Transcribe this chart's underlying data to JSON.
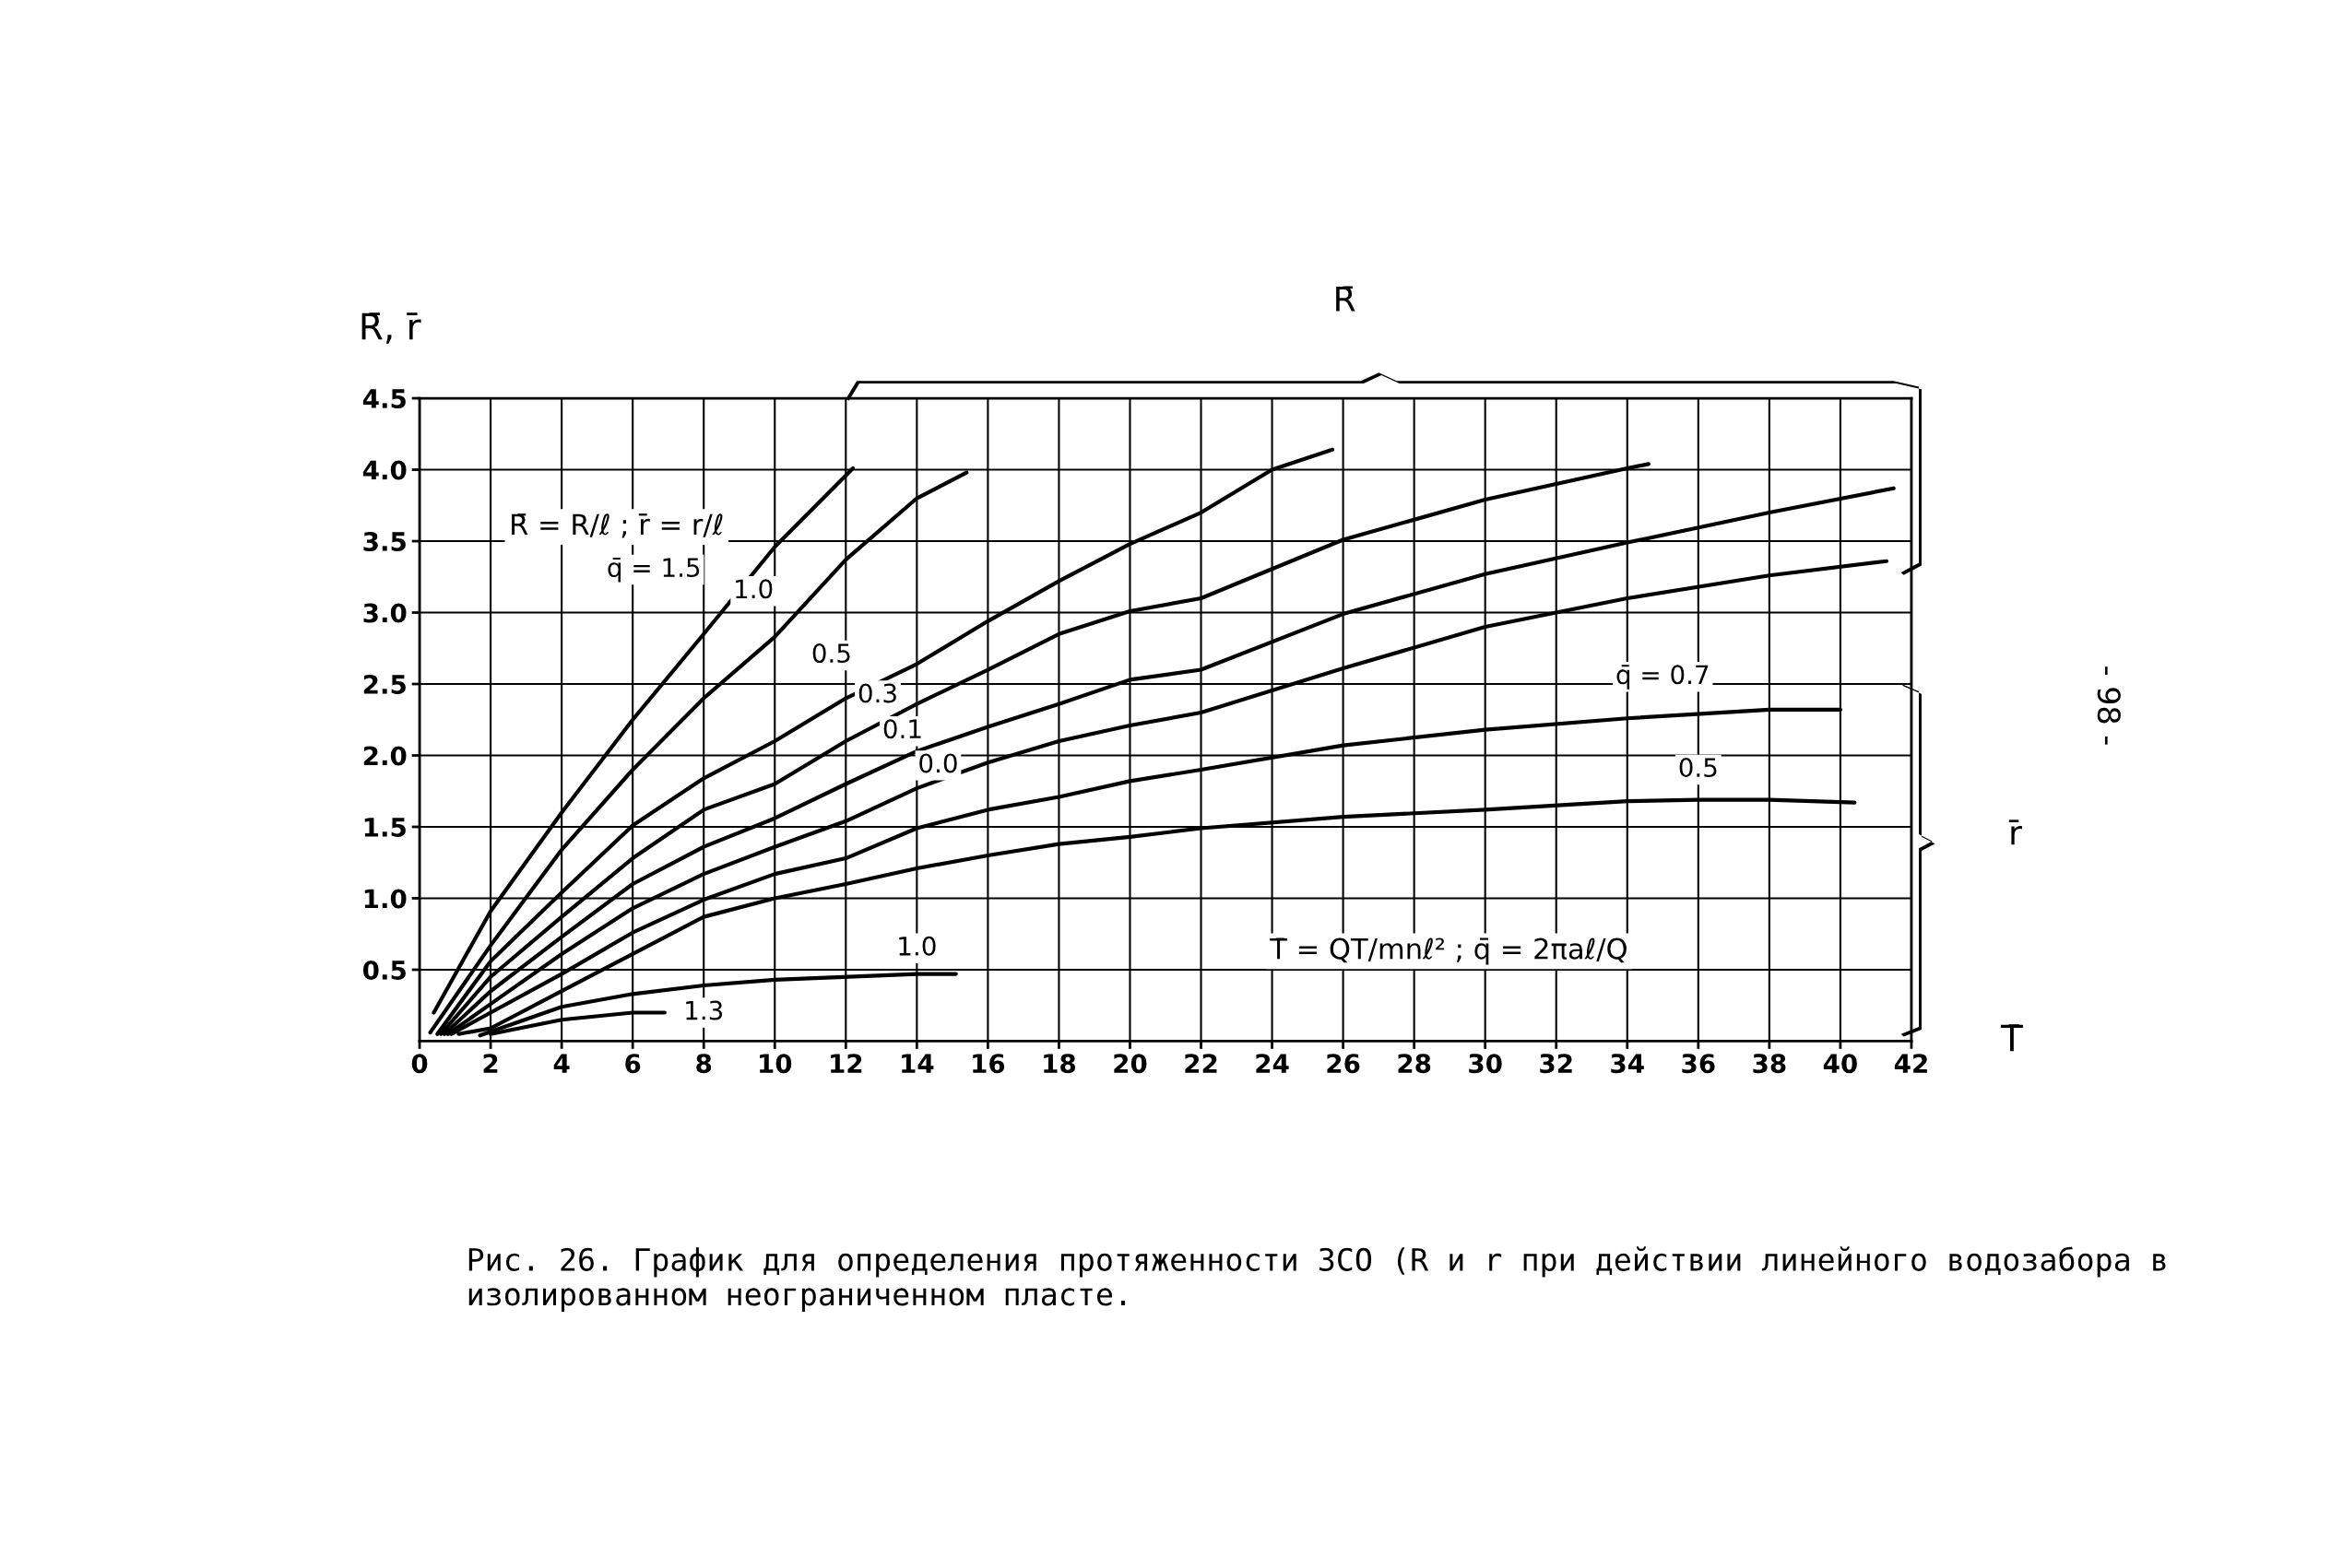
{
  "chart_data": {
    "type": "line",
    "xlabel": "T̄",
    "ylabel": "R̄, r̄",
    "xlim": [
      0,
      42
    ],
    "ylim": [
      0,
      4.5
    ],
    "xticks": [
      0,
      2,
      4,
      6,
      8,
      10,
      12,
      14,
      16,
      18,
      20,
      22,
      24,
      26,
      28,
      30,
      32,
      34,
      36,
      38,
      40,
      42
    ],
    "yticks": [
      {
        "value": 0.5,
        "label": "0.5"
      },
      {
        "value": 1.0,
        "label": "1.0"
      },
      {
        "value": 1.5,
        "label": "1.5"
      },
      {
        "value": 2.0,
        "label": "2.0"
      },
      {
        "value": 2.5,
        "label": "2.5"
      },
      {
        "value": 3.0,
        "label": "3.0"
      },
      {
        "value": 3.5,
        "label": "3.5"
      },
      {
        "value": 4.0,
        "label": "4.0"
      },
      {
        "value": 4.5,
        "label": "4.5"
      }
    ],
    "grid": true,
    "marker": "none",
    "line_style": "solid",
    "series": [
      {
        "color": "#000000",
        "x": [
          0.4,
          2,
          4,
          6,
          8,
          10,
          12.2
        ],
        "values": [
          0.2,
          0.91,
          1.6,
          2.25,
          2.85,
          3.46,
          4.01
        ]
      },
      {
        "color": "#000000",
        "x": [
          0.3,
          2,
          4,
          6,
          8,
          10,
          12,
          14,
          15.4
        ],
        "values": [
          0.06,
          0.67,
          1.34,
          1.9,
          2.4,
          2.83,
          3.37,
          3.8,
          3.98
        ]
      },
      {
        "color": "#000000",
        "x": [
          0.5,
          2,
          4,
          6,
          8,
          10,
          12,
          14,
          16,
          18,
          20,
          22,
          24,
          25.7
        ],
        "values": [
          0.05,
          0.56,
          1.04,
          1.51,
          1.84,
          2.1,
          2.4,
          2.64,
          2.94,
          3.22,
          3.48,
          3.7,
          4.0,
          4.14
        ]
      },
      {
        "color": "#000000",
        "x": [
          0.6,
          2,
          4,
          6,
          8,
          10,
          12,
          14,
          16,
          18,
          20,
          22,
          26,
          30,
          34,
          34.6
        ],
        "values": [
          0.05,
          0.45,
          0.87,
          1.28,
          1.62,
          1.8,
          2.1,
          2.36,
          2.6,
          2.85,
          3.01,
          3.1,
          3.51,
          3.79,
          4.01,
          4.04
        ]
      },
      {
        "color": "#000000",
        "x": [
          0.7,
          2,
          4,
          6,
          8,
          10,
          12,
          14,
          16,
          18,
          20,
          22,
          26,
          30,
          34,
          38,
          41.5
        ],
        "values": [
          0.05,
          0.35,
          0.73,
          1.1,
          1.36,
          1.56,
          1.8,
          2.03,
          2.2,
          2.36,
          2.53,
          2.6,
          2.99,
          3.27,
          3.49,
          3.7,
          3.87
        ]
      },
      {
        "color": "#000000",
        "x": [
          0.8,
          2,
          4,
          6,
          8,
          10,
          12,
          14,
          16,
          18,
          20,
          22,
          26,
          30,
          34,
          38,
          41.3
        ],
        "values": [
          0.05,
          0.26,
          0.61,
          0.93,
          1.17,
          1.36,
          1.54,
          1.77,
          1.95,
          2.1,
          2.21,
          2.3,
          2.61,
          2.9,
          3.1,
          3.26,
          3.36
        ]
      },
      {
        "color": "#000000",
        "x": [
          0.9,
          2,
          4,
          6,
          8,
          10,
          12,
          14,
          16,
          18,
          20,
          22,
          26,
          30,
          34,
          38,
          40
        ],
        "values": [
          0.05,
          0.2,
          0.47,
          0.76,
          0.99,
          1.17,
          1.28,
          1.49,
          1.62,
          1.71,
          1.82,
          1.9,
          2.07,
          2.18,
          2.26,
          2.32,
          2.32
        ]
      },
      {
        "color": "#000000",
        "x": [
          1.1,
          2,
          4,
          6,
          8,
          10,
          12,
          14,
          16,
          18,
          20,
          22,
          26,
          30,
          34,
          36,
          38,
          40.4
        ],
        "values": [
          0.05,
          0.09,
          0.35,
          0.61,
          0.87,
          1.0,
          1.1,
          1.21,
          1.3,
          1.38,
          1.43,
          1.49,
          1.57,
          1.62,
          1.68,
          1.69,
          1.69,
          1.67
        ]
      },
      {
        "color": "#000000",
        "x": [
          1.7,
          4,
          6,
          8,
          10,
          14,
          15.1
        ],
        "values": [
          0.04,
          0.24,
          0.33,
          0.39,
          0.43,
          0.47,
          0.47
        ]
      },
      {
        "color": "#000000",
        "x": [
          2,
          4,
          6,
          6.9
        ],
        "values": [
          0.05,
          0.15,
          0.2,
          0.2
        ]
      }
    ],
    "annotations": [
      "q̄ = 1.5",
      "1.0",
      "0.5",
      "0.3",
      "0.1",
      "0.0",
      "q̄ = 0.7",
      "0.5",
      "1.0",
      "1.3",
      "R̄ = R/ℓ ; r̄ = r/ℓ",
      "T̄ = QT/mnℓ² ; q̄ = 2πaℓ/Q",
      "R̄",
      "r̄",
      "Рис. 26. График для определения протяженности ЗСО (R и r при действии линейного водозабора в изолированном неограниченном пласте.",
      "- 98 -"
    ]
  }
}
